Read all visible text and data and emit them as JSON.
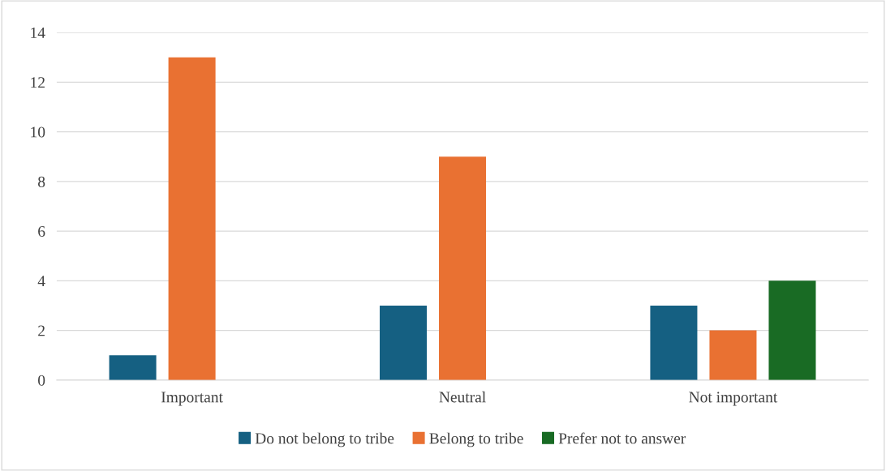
{
  "chart_data": {
    "type": "bar",
    "categories": [
      "Important",
      "Neutral",
      "Not important"
    ],
    "series": [
      {
        "name": "Do not belong to tribe",
        "color": "#156082",
        "values": [
          1,
          3,
          3
        ]
      },
      {
        "name": "Belong to tribe",
        "color": "#e97132",
        "values": [
          13,
          9,
          2
        ]
      },
      {
        "name": "Prefer not to answer",
        "color": "#196b24",
        "values": [
          null,
          null,
          4
        ]
      }
    ],
    "ylim": [
      0,
      14
    ],
    "yticks": [
      0,
      2,
      4,
      6,
      8,
      10,
      12,
      14
    ],
    "grid": "y",
    "legend": "bottom"
  }
}
